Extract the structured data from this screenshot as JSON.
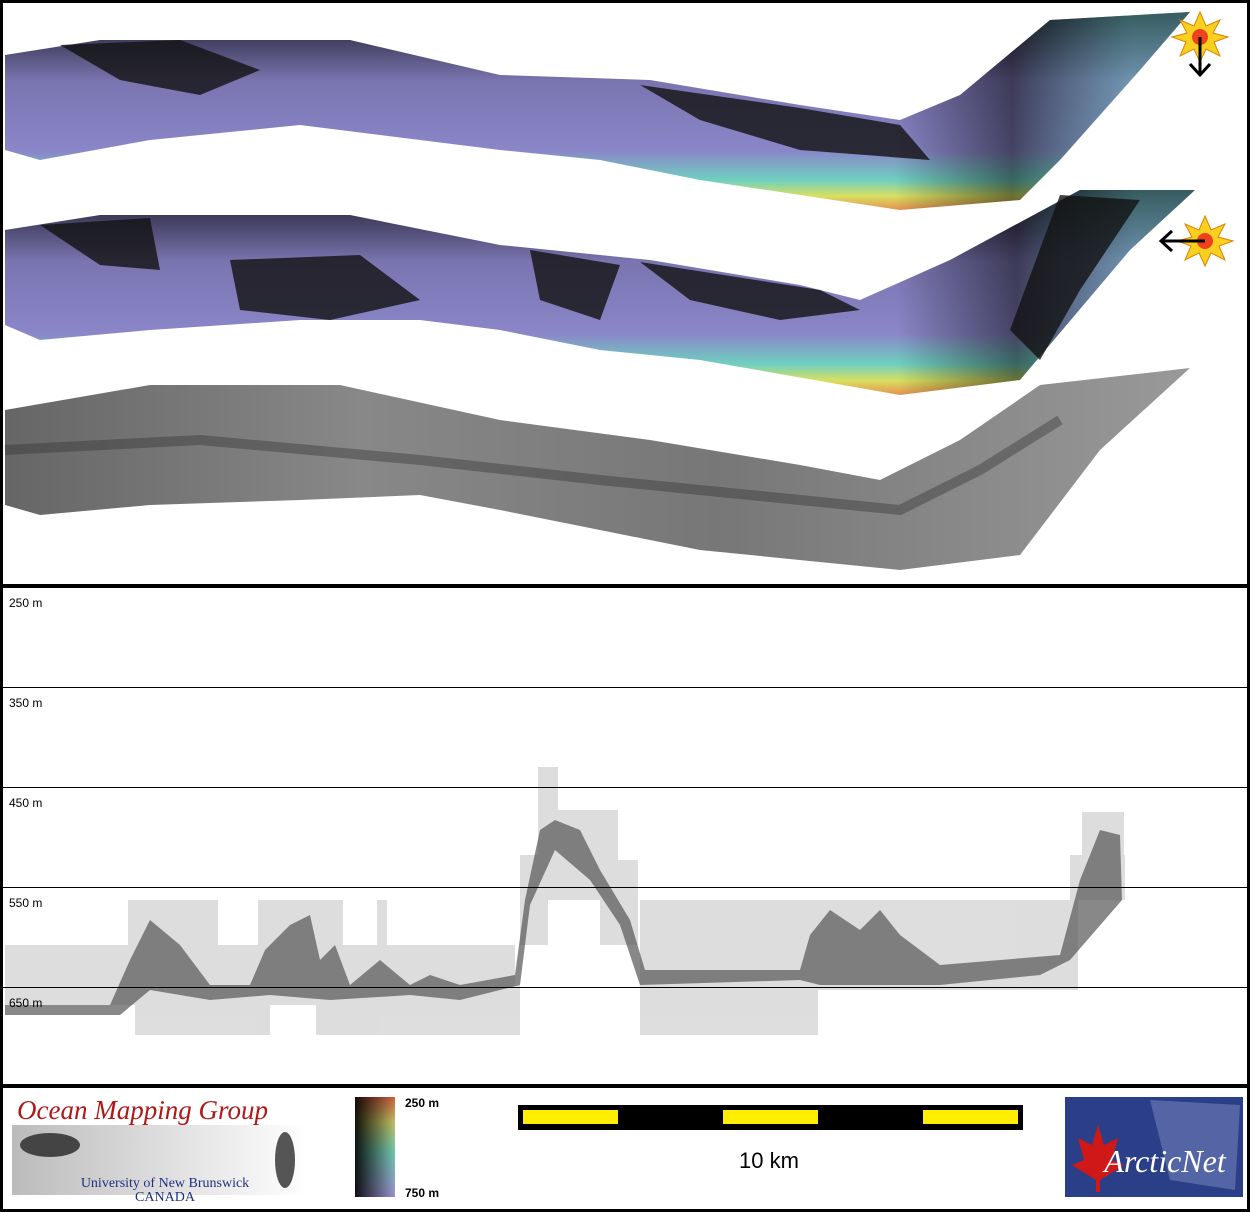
{
  "profile": {
    "depth_labels": [
      "250 m",
      "350 m",
      "450 m",
      "550 m",
      "650 m"
    ]
  },
  "legend": {
    "depth_colorbar": {
      "top_label": "250 m",
      "bottom_label": "750 m"
    },
    "scale_bar": {
      "label": "10 km"
    }
  },
  "logos": {
    "ocean_mapping_group": {
      "title": "Ocean Mapping Group",
      "institution": "University of New Brunswick",
      "country": "CANADA"
    },
    "arcticnet": {
      "name": "ArcticNet"
    }
  }
}
